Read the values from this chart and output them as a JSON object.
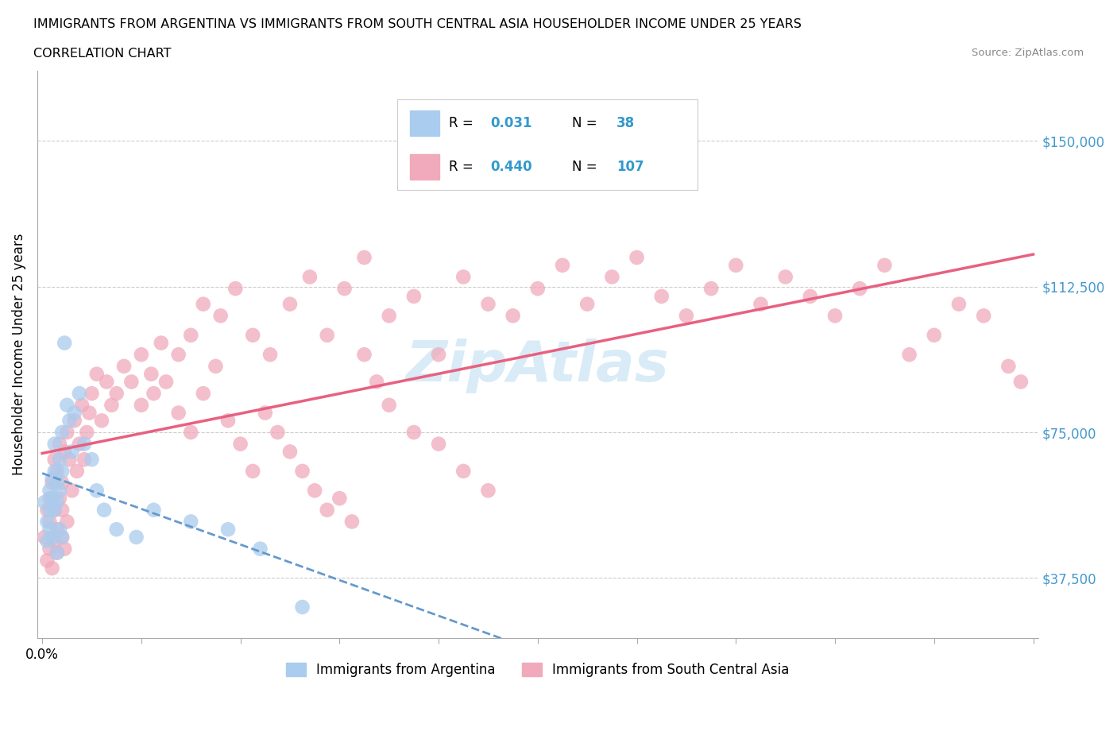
{
  "title_line1": "IMMIGRANTS FROM ARGENTINA VS IMMIGRANTS FROM SOUTH CENTRAL ASIA HOUSEHOLDER INCOME UNDER 25 YEARS",
  "title_line2": "CORRELATION CHART",
  "source_text": "Source: ZipAtlas.com",
  "ylabel": "Householder Income Under 25 years",
  "xlim": [
    -0.002,
    0.402
  ],
  "ylim": [
    22000,
    168000
  ],
  "yticks": [
    37500,
    75000,
    112500,
    150000
  ],
  "ytick_labels": [
    "$37,500",
    "$75,000",
    "$112,500",
    "$150,000"
  ],
  "xticks": [
    0.0,
    0.04,
    0.08,
    0.12,
    0.16,
    0.2,
    0.24,
    0.28,
    0.32,
    0.36,
    0.4
  ],
  "xtick_labels_show": {
    "0.0": "0.0%"
  },
  "legend_label1": "Immigrants from Argentina",
  "legend_label2": "Immigrants from South Central Asia",
  "R1": "0.031",
  "N1": "38",
  "R2": "0.440",
  "N2": "107",
  "color_argentina": "#aaccee",
  "color_south_asia": "#f0aabc",
  "trendline_color_argentina": "#6699cc",
  "trendline_color_south_asia": "#e86080",
  "watermark_text": "ZipAtlas",
  "background_color": "#ffffff",
  "argentina_x": [
    0.001,
    0.002,
    0.002,
    0.003,
    0.003,
    0.003,
    0.004,
    0.004,
    0.004,
    0.005,
    0.005,
    0.005,
    0.006,
    0.006,
    0.006,
    0.007,
    0.007,
    0.007,
    0.008,
    0.008,
    0.008,
    0.009,
    0.01,
    0.011,
    0.012,
    0.013,
    0.015,
    0.017,
    0.02,
    0.022,
    0.025,
    0.03,
    0.038,
    0.045,
    0.06,
    0.075,
    0.088,
    0.105
  ],
  "argentina_y": [
    57000,
    52000,
    47000,
    60000,
    55000,
    50000,
    63000,
    58000,
    48000,
    65000,
    55000,
    72000,
    62000,
    57000,
    44000,
    68000,
    60000,
    50000,
    75000,
    65000,
    48000,
    98000,
    82000,
    78000,
    70000,
    80000,
    85000,
    72000,
    68000,
    60000,
    55000,
    50000,
    48000,
    55000,
    52000,
    50000,
    45000,
    30000
  ],
  "south_asia_x": [
    0.001,
    0.002,
    0.002,
    0.003,
    0.003,
    0.003,
    0.004,
    0.004,
    0.005,
    0.005,
    0.005,
    0.006,
    0.006,
    0.006,
    0.007,
    0.007,
    0.008,
    0.008,
    0.008,
    0.009,
    0.009,
    0.01,
    0.01,
    0.011,
    0.012,
    0.013,
    0.014,
    0.015,
    0.016,
    0.017,
    0.018,
    0.019,
    0.02,
    0.022,
    0.024,
    0.026,
    0.028,
    0.03,
    0.033,
    0.036,
    0.04,
    0.044,
    0.048,
    0.055,
    0.06,
    0.065,
    0.072,
    0.078,
    0.085,
    0.092,
    0.1,
    0.108,
    0.115,
    0.122,
    0.13,
    0.14,
    0.15,
    0.16,
    0.17,
    0.18,
    0.19,
    0.2,
    0.21,
    0.22,
    0.23,
    0.24,
    0.25,
    0.26,
    0.27,
    0.28,
    0.29,
    0.3,
    0.31,
    0.32,
    0.33,
    0.34,
    0.35,
    0.36,
    0.37,
    0.38,
    0.39,
    0.395,
    0.04,
    0.045,
    0.05,
    0.055,
    0.06,
    0.065,
    0.07,
    0.075,
    0.08,
    0.085,
    0.09,
    0.095,
    0.1,
    0.105,
    0.11,
    0.115,
    0.12,
    0.125,
    0.13,
    0.135,
    0.14,
    0.15,
    0.16,
    0.17,
    0.18
  ],
  "south_asia_y": [
    48000,
    55000,
    42000,
    58000,
    45000,
    52000,
    62000,
    40000,
    68000,
    55000,
    47000,
    65000,
    50000,
    44000,
    72000,
    58000,
    62000,
    48000,
    55000,
    70000,
    45000,
    75000,
    52000,
    68000,
    60000,
    78000,
    65000,
    72000,
    82000,
    68000,
    75000,
    80000,
    85000,
    90000,
    78000,
    88000,
    82000,
    85000,
    92000,
    88000,
    95000,
    90000,
    98000,
    95000,
    100000,
    108000,
    105000,
    112000,
    100000,
    95000,
    108000,
    115000,
    100000,
    112000,
    120000,
    105000,
    110000,
    95000,
    115000,
    108000,
    105000,
    112000,
    118000,
    108000,
    115000,
    120000,
    110000,
    105000,
    112000,
    118000,
    108000,
    115000,
    110000,
    105000,
    112000,
    118000,
    95000,
    100000,
    108000,
    105000,
    92000,
    88000,
    82000,
    85000,
    88000,
    80000,
    75000,
    85000,
    92000,
    78000,
    72000,
    65000,
    80000,
    75000,
    70000,
    65000,
    60000,
    55000,
    58000,
    52000,
    95000,
    88000,
    82000,
    75000,
    72000,
    65000,
    60000
  ]
}
